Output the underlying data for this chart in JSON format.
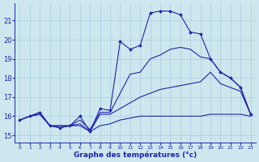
{
  "title": "Graphe des températures (°c)",
  "bg_color": "#cce8ee",
  "grid_color": "#aaccdd",
  "line_color": "#2222aa",
  "ylim": [
    14.6,
    21.9
  ],
  "yticks": [
    15,
    16,
    17,
    18,
    19,
    20,
    21
  ],
  "hours": [
    0,
    1,
    2,
    3,
    4,
    5,
    6,
    7,
    8,
    9,
    10,
    11,
    12,
    13,
    14,
    15,
    16,
    17,
    18,
    19,
    20,
    21,
    22,
    23
  ],
  "line_min": [
    15.8,
    16.0,
    16.1,
    15.5,
    15.5,
    15.5,
    15.5,
    15.2,
    15.5,
    15.6,
    15.8,
    15.9,
    16.0,
    16.0,
    16.0,
    16.0,
    16.0,
    16.0,
    16.0,
    16.1,
    16.1,
    16.1,
    16.1,
    16.0
  ],
  "line_mean_min": [
    15.8,
    16.0,
    16.1,
    15.5,
    15.5,
    15.5,
    15.6,
    15.2,
    16.1,
    16.1,
    16.4,
    16.7,
    17.0,
    17.2,
    17.4,
    17.5,
    17.6,
    17.7,
    17.8,
    18.3,
    17.7,
    17.5,
    17.3,
    16.1
  ],
  "line_mean_max": [
    15.8,
    16.0,
    16.2,
    15.5,
    15.4,
    15.5,
    15.8,
    15.3,
    16.2,
    16.2,
    17.2,
    18.2,
    18.3,
    19.0,
    19.2,
    19.5,
    19.6,
    19.5,
    19.1,
    19.0,
    18.3,
    18.0,
    17.5,
    16.1
  ],
  "line_actual": [
    15.8,
    16.0,
    16.2,
    15.5,
    15.4,
    15.5,
    16.0,
    15.2,
    16.4,
    16.3,
    19.9,
    19.5,
    19.7,
    21.4,
    21.5,
    21.5,
    21.3,
    20.4,
    20.3,
    19.0,
    18.3,
    18.0,
    17.5,
    16.1
  ]
}
